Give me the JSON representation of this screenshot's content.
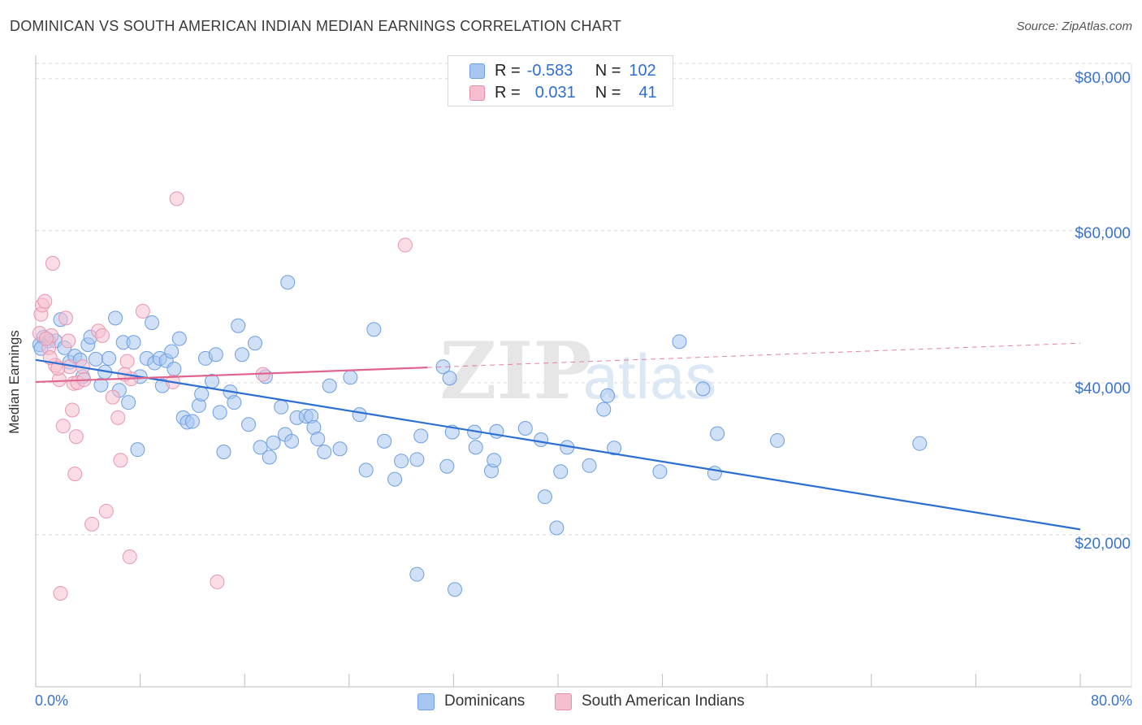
{
  "title": "DOMINICAN VS SOUTH AMERICAN INDIAN MEDIAN EARNINGS CORRELATION CHART",
  "source": "Source: ZipAtlas.com",
  "watermark": {
    "zip": "ZIP",
    "atlas": "atlas"
  },
  "legend": {
    "r_label": "R =",
    "n_label": "N =",
    "rows": [
      {
        "r": "-0.583",
        "n": "102",
        "color": "#a8c7f0",
        "border": "#6f9fde"
      },
      {
        "r": "0.031",
        "n": "41",
        "color": "#f6bfd0",
        "border": "#e58fab"
      }
    ]
  },
  "colors": {
    "blue_fill": "#a8c7f0",
    "blue_stroke": "#6d9ee0",
    "blue_line": "#2b6fd3",
    "pink_fill": "#f6bfd0",
    "pink_stroke": "#e896b0",
    "pink_line": "#e0648e",
    "grid": "#d9d9d9",
    "axis_text": "#3b73c9"
  },
  "chart_data": {
    "type": "scatter",
    "title": "DOMINICAN VS SOUTH AMERICAN INDIAN MEDIAN EARNINGS CORRELATION CHART",
    "xlabel": "",
    "ylabel": "Median Earnings",
    "xlim": [
      0,
      80
    ],
    "ylim": [
      0,
      82000
    ],
    "x_tick_labels": [
      "0.0%",
      "80.0%"
    ],
    "y_ticks": [
      20000,
      40000,
      60000,
      80000
    ],
    "y_tick_labels": [
      "$20,000",
      "$40,000",
      "$60,000",
      "$80,000"
    ],
    "grid": true,
    "legend_position": "top-center",
    "series": [
      {
        "name": "Dominicans",
        "trend": {
          "x": [
            0,
            80
          ],
          "y": [
            43000,
            20700
          ]
        },
        "points": [
          [
            0.3,
            45000
          ],
          [
            0.6,
            46000
          ],
          [
            1.0,
            45500
          ],
          [
            1.5,
            45500
          ],
          [
            1.9,
            48300
          ],
          [
            2.2,
            44600
          ],
          [
            2.6,
            42700
          ],
          [
            3.0,
            43500
          ],
          [
            3.4,
            43000
          ],
          [
            3.6,
            40800
          ],
          [
            4.0,
            45000
          ],
          [
            4.2,
            46000
          ],
          [
            4.6,
            43100
          ],
          [
            5.0,
            39700
          ],
          [
            5.3,
            41400
          ],
          [
            5.6,
            43200
          ],
          [
            6.1,
            48500
          ],
          [
            6.4,
            39000
          ],
          [
            6.7,
            45300
          ],
          [
            7.1,
            37400
          ],
          [
            7.5,
            45300
          ],
          [
            7.8,
            31200
          ],
          [
            8.0,
            40800
          ],
          [
            8.5,
            43200
          ],
          [
            8.9,
            47900
          ],
          [
            9.1,
            42600
          ],
          [
            9.5,
            43200
          ],
          [
            9.7,
            39600
          ],
          [
            10.0,
            42900
          ],
          [
            10.4,
            44100
          ],
          [
            10.6,
            41800
          ],
          [
            11.0,
            45800
          ],
          [
            11.3,
            35400
          ],
          [
            11.6,
            34800
          ],
          [
            12.0,
            34900
          ],
          [
            12.5,
            37000
          ],
          [
            12.7,
            38500
          ],
          [
            13.0,
            43200
          ],
          [
            13.5,
            40200
          ],
          [
            13.8,
            43700
          ],
          [
            14.1,
            36100
          ],
          [
            14.4,
            30900
          ],
          [
            14.9,
            38800
          ],
          [
            15.2,
            37400
          ],
          [
            15.5,
            47500
          ],
          [
            15.8,
            43700
          ],
          [
            16.3,
            34500
          ],
          [
            16.8,
            45200
          ],
          [
            17.2,
            31500
          ],
          [
            17.6,
            40800
          ],
          [
            17.9,
            30200
          ],
          [
            18.2,
            32100
          ],
          [
            18.8,
            36800
          ],
          [
            19.1,
            33200
          ],
          [
            19.3,
            53200
          ],
          [
            19.6,
            32300
          ],
          [
            20.0,
            35400
          ],
          [
            20.7,
            35600
          ],
          [
            21.1,
            35600
          ],
          [
            21.3,
            34100
          ],
          [
            21.6,
            32600
          ],
          [
            22.1,
            30900
          ],
          [
            22.5,
            39600
          ],
          [
            23.3,
            31300
          ],
          [
            24.1,
            40700
          ],
          [
            24.8,
            35800
          ],
          [
            25.3,
            28500
          ],
          [
            25.9,
            47000
          ],
          [
            26.7,
            32300
          ],
          [
            27.5,
            27300
          ],
          [
            28.0,
            29700
          ],
          [
            29.2,
            29900
          ],
          [
            29.5,
            33000
          ],
          [
            29.2,
            14800
          ],
          [
            31.2,
            42100
          ],
          [
            31.5,
            29000
          ],
          [
            31.7,
            40600
          ],
          [
            31.9,
            33500
          ],
          [
            32.1,
            12800
          ],
          [
            33.6,
            33500
          ],
          [
            33.7,
            31500
          ],
          [
            34.9,
            28400
          ],
          [
            35.1,
            29800
          ],
          [
            35.3,
            33600
          ],
          [
            37.5,
            34000
          ],
          [
            38.7,
            32500
          ],
          [
            39.0,
            25000
          ],
          [
            39.9,
            20900
          ],
          [
            40.2,
            28300
          ],
          [
            40.7,
            31500
          ],
          [
            42.4,
            29100
          ],
          [
            43.5,
            36500
          ],
          [
            43.8,
            38300
          ],
          [
            44.3,
            31400
          ],
          [
            47.8,
            28300
          ],
          [
            49.3,
            45400
          ],
          [
            51.1,
            39200
          ],
          [
            52.0,
            28100
          ],
          [
            52.2,
            33300
          ],
          [
            56.8,
            32400
          ],
          [
            67.7,
            32000
          ],
          [
            0.4,
            44500
          ]
        ]
      },
      {
        "name": "South American Indians",
        "trend": {
          "x": [
            0,
            30
          ],
          "y": [
            40100,
            42000
          ]
        },
        "trend_dashed": {
          "x": [
            30,
            80
          ],
          "y": [
            42000,
            45200
          ]
        },
        "points": [
          [
            0.3,
            46500
          ],
          [
            0.4,
            49000
          ],
          [
            0.5,
            50200
          ],
          [
            0.7,
            50700
          ],
          [
            1.0,
            44600
          ],
          [
            1.2,
            46200
          ],
          [
            1.3,
            55700
          ],
          [
            1.5,
            42300
          ],
          [
            1.8,
            40400
          ],
          [
            1.9,
            12300
          ],
          [
            2.1,
            34300
          ],
          [
            2.3,
            48500
          ],
          [
            2.6,
            42100
          ],
          [
            2.8,
            36400
          ],
          [
            2.9,
            39900
          ],
          [
            3.0,
            28000
          ],
          [
            3.1,
            32900
          ],
          [
            3.2,
            40000
          ],
          [
            3.6,
            42100
          ],
          [
            4.3,
            21400
          ],
          [
            4.8,
            46800
          ],
          [
            5.1,
            46200
          ],
          [
            5.4,
            23100
          ],
          [
            5.9,
            38100
          ],
          [
            6.3,
            35400
          ],
          [
            6.5,
            29800
          ],
          [
            7.0,
            42800
          ],
          [
            7.2,
            17100
          ],
          [
            7.3,
            40500
          ],
          [
            8.2,
            49400
          ],
          [
            10.5,
            40100
          ],
          [
            10.8,
            64200
          ],
          [
            13.9,
            13800
          ],
          [
            17.4,
            41100
          ],
          [
            28.3,
            58100
          ],
          [
            1.1,
            43300
          ],
          [
            1.7,
            41900
          ],
          [
            0.8,
            45800
          ],
          [
            3.7,
            40400
          ],
          [
            6.8,
            41100
          ],
          [
            2.5,
            45500
          ]
        ]
      }
    ]
  }
}
